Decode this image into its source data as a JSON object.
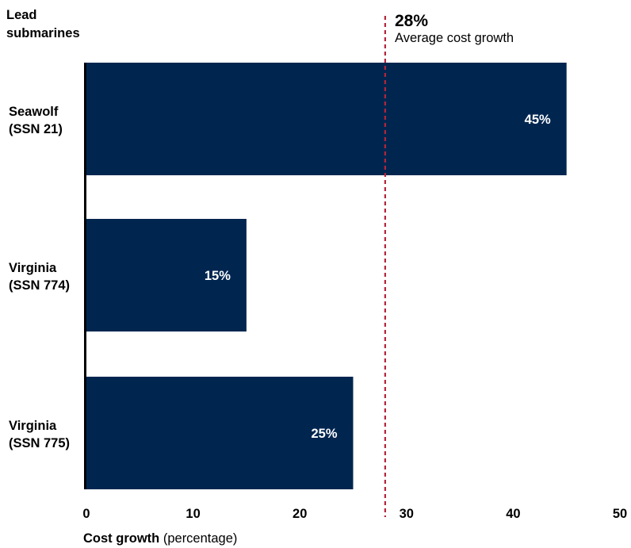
{
  "chart_data": {
    "type": "bar",
    "orientation": "horizontal",
    "y_axis_title": [
      "Lead",
      "submarines"
    ],
    "categories": [
      [
        "Seawolf",
        "(SSN 21)"
      ],
      [
        "Virginia",
        "(SSN 774)"
      ],
      [
        "Virginia",
        "(SSN 775)"
      ]
    ],
    "values": [
      45,
      15,
      25
    ],
    "data_labels": [
      "45%",
      "15%",
      "25%"
    ],
    "bar_color": "#002650",
    "xlim": [
      0,
      50
    ],
    "xticks": [
      0,
      10,
      20,
      30,
      40,
      50
    ],
    "xlabel_bold": "Cost growth",
    "xlabel_rest": "(percentage)",
    "reference_line": {
      "value": 28,
      "label_value": "28%",
      "label_text": "Average cost growth",
      "color": "#b5253a",
      "style": "dashed"
    },
    "grid": false,
    "legend": "none"
  }
}
